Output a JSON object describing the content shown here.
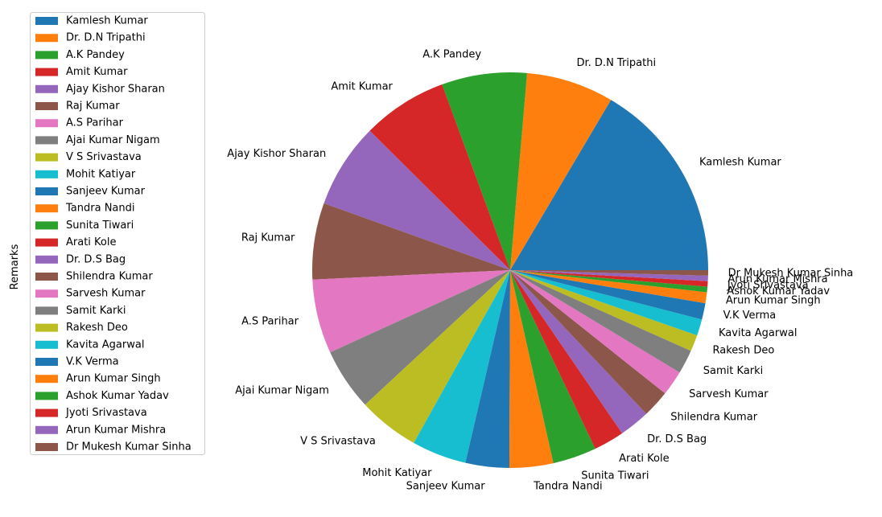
{
  "chart_data": {
    "type": "pie",
    "ylabel": "Remarks",
    "legend_position": "upper-left",
    "start_angle_deg": 0,
    "direction": "counterclockwise",
    "categories": [
      "Kamlesh Kumar",
      "Dr. D.N Tripathi",
      "A.K Pandey",
      "Amit Kumar",
      "Ajay Kishor Sharan",
      "Raj Kumar",
      "A.S Parihar",
      "Ajai Kumar Nigam",
      "V S Srivastava",
      "Mohit Katiyar",
      "Sanjeev Kumar",
      "Tandra Nandi",
      "Sunita Tiwari",
      "Arati Kole",
      "Dr. D.S Bag",
      "Shilendra Kumar",
      "Sarvesh Kumar",
      "Samit Karki",
      "Rakesh Deo",
      "Kavita Agarwal",
      "V.K Verma",
      "Arun Kumar Singh",
      "Ashok Kumar Yadav",
      "Jyoti Srivastava",
      "Arun Kumar Mishra",
      "Dr Mukesh Kumar Sinha"
    ],
    "values": [
      18.5,
      8.0,
      7.8,
      7.8,
      7.8,
      7.0,
      6.8,
      5.7,
      5.6,
      5.0,
      4.0,
      4.0,
      4.0,
      2.8,
      2.8,
      2.5,
      2.3,
      2.2,
      1.5,
      1.5,
      1.5,
      1.0,
      0.5,
      0.5,
      0.5,
      0.5
    ],
    "colors": [
      "#1f77b4",
      "#ff7f0e",
      "#2ca02c",
      "#d62728",
      "#9467bd",
      "#8c564b",
      "#e377c2",
      "#7f7f7f",
      "#bcbd22",
      "#17becf",
      "#1f77b4",
      "#ff7f0e",
      "#2ca02c",
      "#d62728",
      "#9467bd",
      "#8c564b",
      "#e377c2",
      "#7f7f7f",
      "#bcbd22",
      "#17becf",
      "#1f77b4",
      "#ff7f0e",
      "#2ca02c",
      "#d62728",
      "#9467bd",
      "#8c564b"
    ]
  }
}
